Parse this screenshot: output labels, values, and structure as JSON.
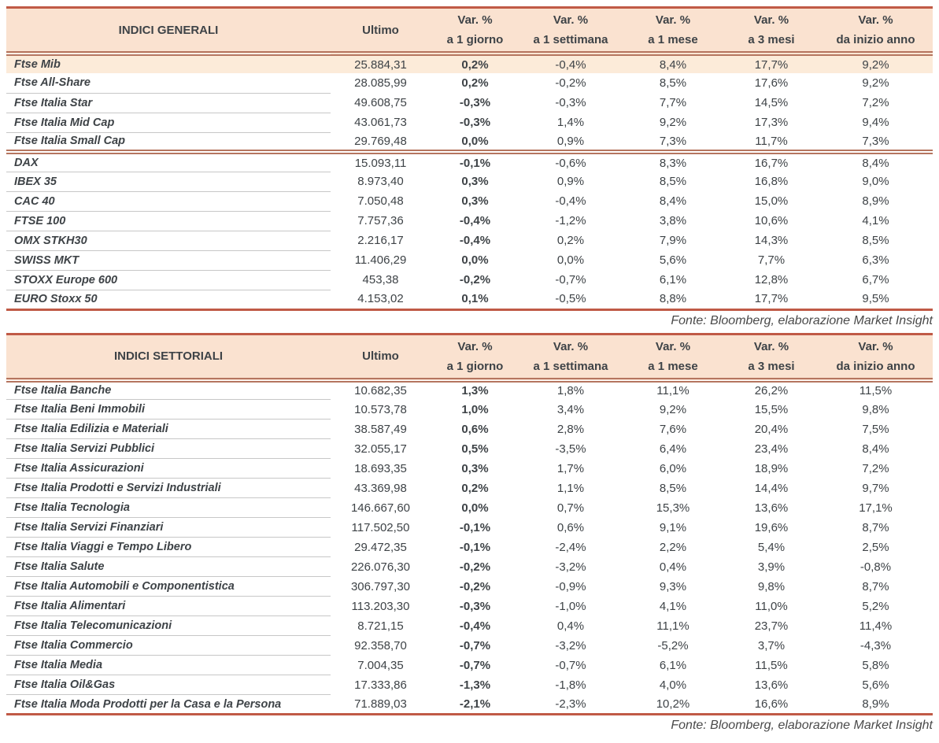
{
  "colors": {
    "line_strong": "#c05a46",
    "line_double": "#b5755f",
    "header_bg": "#fae2d0",
    "highlight_bg": "#fcebd9",
    "text": "#3e4347"
  },
  "chart_data": [
    {
      "type": "table",
      "title": "INDICI GENERALI",
      "col_last_price": "Ultimo",
      "var_cols": [
        {
          "line1": "Var. %",
          "line2": "a 1 giorno"
        },
        {
          "line1": "Var. %",
          "line2": "a 1 settimana"
        },
        {
          "line1": "Var. %",
          "line2": "a 1 mese"
        },
        {
          "line1": "Var. %",
          "line2": "a 3 mesi"
        },
        {
          "line1": "Var. %",
          "line2": "da inizio anno"
        }
      ],
      "highlight_first_row": true,
      "groups": [
        [
          [
            "Ftse Mib",
            "25.884,31",
            "0,2%",
            "-0,4%",
            "8,4%",
            "17,7%",
            "9,2%"
          ],
          [
            "Ftse All-Share",
            "28.085,99",
            "0,2%",
            "-0,2%",
            "8,5%",
            "17,6%",
            "9,2%"
          ],
          [
            "Ftse Italia Star",
            "49.608,75",
            "-0,3%",
            "-0,3%",
            "7,7%",
            "14,5%",
            "7,2%"
          ],
          [
            "Ftse Italia Mid Cap",
            "43.061,73",
            "-0,3%",
            "1,4%",
            "9,2%",
            "17,3%",
            "9,4%"
          ],
          [
            "Ftse Italia Small Cap",
            "29.769,48",
            "0,0%",
            "0,9%",
            "7,3%",
            "11,7%",
            "7,3%"
          ]
        ],
        [
          [
            "DAX",
            "15.093,11",
            "-0,1%",
            "-0,6%",
            "8,3%",
            "16,7%",
            "8,4%"
          ],
          [
            "IBEX 35",
            "8.973,40",
            "0,3%",
            "0,9%",
            "8,5%",
            "16,8%",
            "9,0%"
          ],
          [
            "CAC 40",
            "7.050,48",
            "0,3%",
            "-0,4%",
            "8,4%",
            "15,0%",
            "8,9%"
          ],
          [
            "FTSE 100",
            "7.757,36",
            "-0,4%",
            "-1,2%",
            "3,8%",
            "10,6%",
            "4,1%"
          ],
          [
            "OMX STKH30",
            "2.216,17",
            "-0,4%",
            "0,2%",
            "7,9%",
            "14,3%",
            "8,5%"
          ],
          [
            "SWISS MKT",
            "11.406,29",
            "0,0%",
            "0,0%",
            "5,6%",
            "7,7%",
            "6,3%"
          ],
          [
            "STOXX Europe 600",
            "453,38",
            "-0,2%",
            "-0,7%",
            "6,1%",
            "12,8%",
            "6,7%"
          ],
          [
            "EURO Stoxx 50",
            "4.153,02",
            "0,1%",
            "-0,5%",
            "8,8%",
            "17,7%",
            "9,5%"
          ]
        ]
      ],
      "source": "Fonte: Bloomberg, elaborazione Market Insight"
    },
    {
      "type": "table",
      "title": "INDICI SETTORIALI",
      "col_last_price": "Ultimo",
      "var_cols": [
        {
          "line1": "Var. %",
          "line2": "a 1 giorno"
        },
        {
          "line1": "Var. %",
          "line2": "a 1 settimana"
        },
        {
          "line1": "Var. %",
          "line2": "a 1 mese"
        },
        {
          "line1": "Var. %",
          "line2": "a 3 mesi"
        },
        {
          "line1": "Var. %",
          "line2": "da inizio anno"
        }
      ],
      "highlight_first_row": false,
      "groups": [
        [
          [
            "Ftse Italia Banche",
            "10.682,35",
            "1,3%",
            "1,8%",
            "11,1%",
            "26,2%",
            "11,5%"
          ],
          [
            "Ftse Italia Beni Immobili",
            "10.573,78",
            "1,0%",
            "3,4%",
            "9,2%",
            "15,5%",
            "9,8%"
          ],
          [
            "Ftse Italia Edilizia e Materiali",
            "38.587,49",
            "0,6%",
            "2,8%",
            "7,6%",
            "20,4%",
            "7,5%"
          ],
          [
            "Ftse Italia Servizi Pubblici",
            "32.055,17",
            "0,5%",
            "-3,5%",
            "6,4%",
            "23,4%",
            "8,4%"
          ],
          [
            "Ftse Italia Assicurazioni",
            "18.693,35",
            "0,3%",
            "1,7%",
            "6,0%",
            "18,9%",
            "7,2%"
          ],
          [
            "Ftse Italia Prodotti e Servizi Industriali",
            "43.369,98",
            "0,2%",
            "1,1%",
            "8,5%",
            "14,4%",
            "9,7%"
          ],
          [
            "Ftse Italia Tecnologia",
            "146.667,60",
            "0,0%",
            "0,7%",
            "15,3%",
            "13,6%",
            "17,1%"
          ],
          [
            "Ftse Italia Servizi Finanziari",
            "117.502,50",
            "-0,1%",
            "0,6%",
            "9,1%",
            "19,6%",
            "8,7%"
          ],
          [
            "Ftse Italia Viaggi e Tempo Libero",
            "29.472,35",
            "-0,1%",
            "-2,4%",
            "2,2%",
            "5,4%",
            "2,5%"
          ],
          [
            "Ftse Italia Salute",
            "226.076,30",
            "-0,2%",
            "-3,2%",
            "0,4%",
            "3,9%",
            "-0,8%"
          ],
          [
            "Ftse Italia Automobili e Componentistica",
            "306.797,30",
            "-0,2%",
            "-0,9%",
            "9,3%",
            "9,8%",
            "8,7%"
          ],
          [
            "Ftse Italia Alimentari",
            "113.203,30",
            "-0,3%",
            "-1,0%",
            "4,1%",
            "11,0%",
            "5,2%"
          ],
          [
            "Ftse Italia Telecomunicazioni",
            "8.721,15",
            "-0,4%",
            "0,4%",
            "11,1%",
            "23,7%",
            "11,4%"
          ],
          [
            "Ftse Italia Commercio",
            "92.358,70",
            "-0,7%",
            "-3,2%",
            "-5,2%",
            "3,7%",
            "-4,3%"
          ],
          [
            "Ftse Italia Media",
            "7.004,35",
            "-0,7%",
            "-0,7%",
            "6,1%",
            "11,5%",
            "5,8%"
          ],
          [
            "Ftse Italia Oil&Gas",
            "17.333,86",
            "-1,3%",
            "-1,8%",
            "4,0%",
            "13,6%",
            "5,6%"
          ],
          [
            "Ftse Italia Moda Prodotti per la Casa e la Persona",
            "71.889,03",
            "-2,1%",
            "-2,3%",
            "10,2%",
            "16,6%",
            "8,9%"
          ]
        ]
      ],
      "source": "Fonte: Bloomberg, elaborazione Market Insight"
    }
  ]
}
